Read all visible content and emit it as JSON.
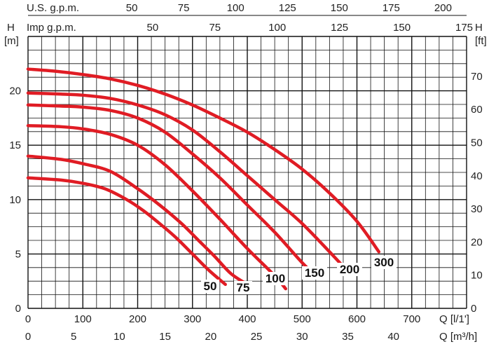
{
  "chart_data": {
    "type": "line",
    "title": "",
    "y_left": {
      "label": "H",
      "unit": "[m]",
      "range": [
        0,
        25
      ],
      "ticks": [
        0,
        5,
        10,
        15,
        20
      ]
    },
    "y_right": {
      "unit": "[ft]",
      "ticks": [
        0,
        10,
        20,
        30,
        40,
        50,
        60,
        70
      ]
    },
    "x_flow_lmin": {
      "label": "Q [l/1']",
      "range": [
        0,
        800
      ],
      "ticks": [
        0,
        100,
        200,
        300,
        400,
        500,
        600,
        700
      ]
    },
    "x_flow_m3h": {
      "label": "Q [m³/h]",
      "ticks": [
        0,
        5,
        10,
        15,
        20,
        25,
        30,
        35,
        40
      ]
    },
    "x_us_gpm": {
      "label": "U.S. g.p.m.",
      "ticks": [
        50,
        75,
        100,
        125,
        150,
        175,
        200
      ]
    },
    "x_imp_gpm": {
      "label": "Imp g.p.m.",
      "ticks": [
        50,
        75,
        100,
        125,
        150,
        175
      ]
    },
    "series": [
      {
        "name": "50",
        "x": [
          0,
          60,
          100,
          140,
          180,
          210,
          240,
          270,
          300,
          330,
          360
        ],
        "y": [
          12,
          11.8,
          11.5,
          11,
          10,
          9,
          7.8,
          6.5,
          5,
          3.5,
          2.2
        ]
      },
      {
        "name": "75",
        "x": [
          0,
          60,
          100,
          150,
          200,
          240,
          280,
          310,
          340,
          370,
          400
        ],
        "y": [
          14,
          13.7,
          13.3,
          12.6,
          11,
          9.5,
          7.8,
          6.3,
          4.8,
          3.2,
          2.2
        ]
      },
      {
        "name": "100",
        "x": [
          0,
          60,
          100,
          150,
          200,
          250,
          300,
          350,
          400,
          450,
          470
        ],
        "y": [
          16.8,
          16.7,
          16.5,
          16,
          15,
          13.2,
          10.8,
          8.2,
          5.5,
          3.0,
          1.8
        ]
      },
      {
        "name": "150",
        "x": [
          0,
          60,
          100,
          150,
          200,
          250,
          300,
          350,
          400,
          450,
          500,
          525
        ],
        "y": [
          18.7,
          18.6,
          18.5,
          18.2,
          17.5,
          16.2,
          14.2,
          12,
          9.5,
          7,
          4.2,
          3.0
        ]
      },
      {
        "name": "200",
        "x": [
          0,
          60,
          100,
          150,
          200,
          250,
          300,
          350,
          400,
          450,
          500,
          550,
          585
        ],
        "y": [
          19.8,
          19.7,
          19.6,
          19.3,
          18.7,
          17.8,
          16.4,
          14.4,
          12.2,
          10,
          7.8,
          5.2,
          3.3
        ]
      },
      {
        "name": "300",
        "x": [
          0,
          50,
          100,
          150,
          200,
          250,
          300,
          350,
          400,
          450,
          500,
          550,
          600,
          640
        ],
        "y": [
          22,
          21.8,
          21.5,
          21.1,
          20.5,
          19.7,
          18.7,
          17.5,
          16.2,
          14.6,
          12.8,
          10.6,
          8,
          5.2
        ]
      }
    ],
    "curve_labels": [
      "50",
      "75",
      "100",
      "150",
      "200",
      "300"
    ],
    "grid": true,
    "legend": "none",
    "colors": {
      "curve": "#e01c24",
      "grid": "#111111"
    }
  }
}
